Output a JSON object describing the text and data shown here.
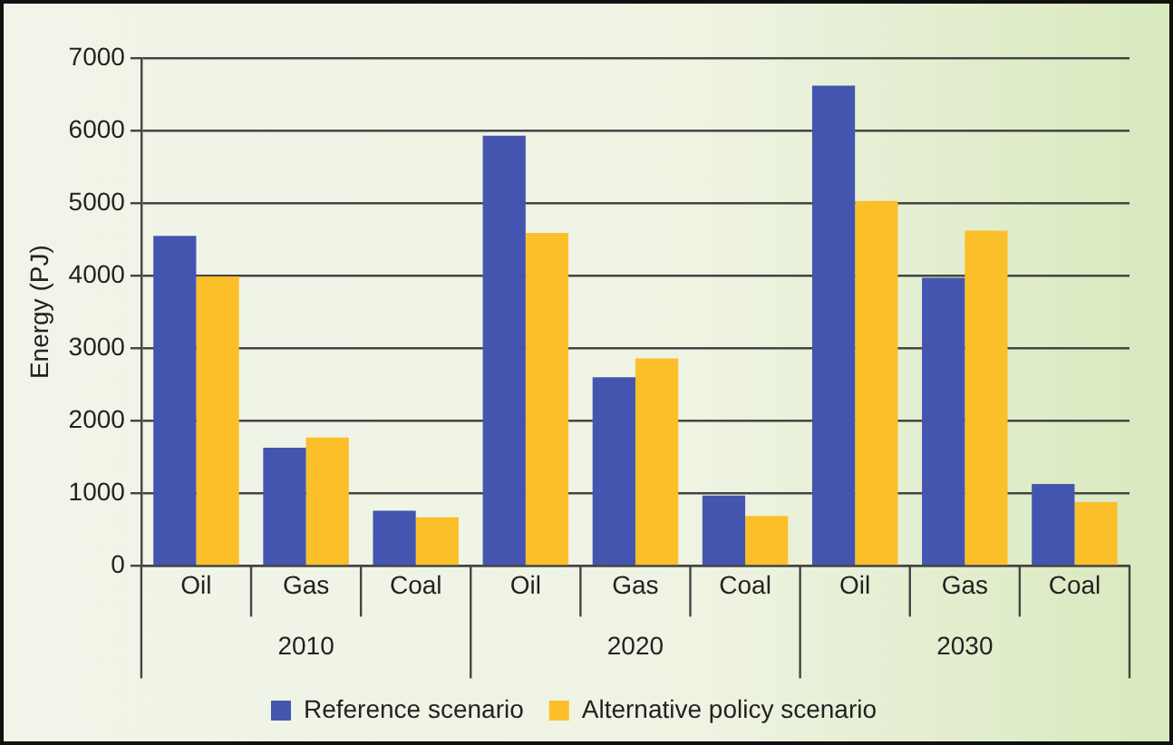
{
  "chart_data": {
    "type": "bar",
    "ylabel": "Energy (PJ)",
    "categories": [
      "Oil",
      "Gas",
      "Coal",
      "Oil",
      "Gas",
      "Coal",
      "Oil",
      "Gas",
      "Coal"
    ],
    "annotations": [
      "2010",
      "2020",
      "2030"
    ],
    "series": [
      {
        "name": "Reference scenario",
        "color": "#4455b0",
        "values": [
          4550,
          1630,
          760,
          5930,
          2600,
          970,
          6620,
          3970,
          1130
        ]
      },
      {
        "name": "Alternative policy scenario",
        "color": "#fbbf2a",
        "values": [
          3990,
          1770,
          670,
          4590,
          2860,
          690,
          5030,
          4620,
          880
        ]
      }
    ],
    "ylim": [
      0,
      7000
    ],
    "yticks": [
      0,
      1000,
      2000,
      3000,
      4000,
      5000,
      6000,
      7000
    ],
    "grid": "y",
    "legend": "bottom"
  }
}
